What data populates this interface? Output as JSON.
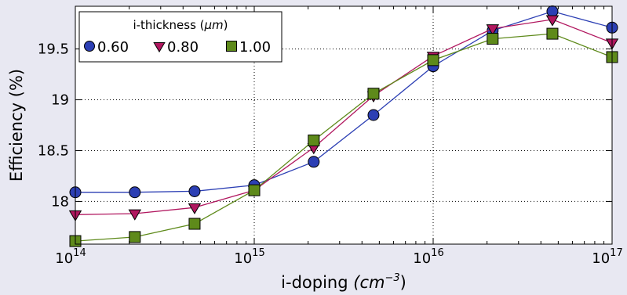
{
  "chart_data": {
    "type": "line",
    "xlabel": "i-doping",
    "xlabel_unit": "(cm",
    "xlabel_exp": "−3",
    "xlabel_close": ")",
    "ylabel": "Efficiency (%)",
    "xscale": "log",
    "xlim": [
      100000000000000.0,
      1e+17
    ],
    "ylim": [
      17.58,
      19.92
    ],
    "x_ticks": [
      {
        "value": 100000000000000.0,
        "base": "10",
        "exp": "14"
      },
      {
        "value": 1000000000000000.0,
        "base": "10",
        "exp": "15"
      },
      {
        "value": 1e+16,
        "base": "10",
        "exp": "16"
      },
      {
        "value": 1e+17,
        "base": "10",
        "exp": "17"
      }
    ],
    "y_ticks": [
      {
        "value": 18,
        "label": "18"
      },
      {
        "value": 18.5,
        "label": "18.5"
      },
      {
        "value": 19,
        "label": "19"
      },
      {
        "value": 19.5,
        "label": "19.5"
      }
    ],
    "grid": true,
    "legend": {
      "title_prefix": "i-thickness (",
      "title_unit": "μm",
      "title_suffix": ")",
      "placement": "top-left"
    },
    "series": [
      {
        "name": "0.60",
        "marker": "circle",
        "color": "#2c3fb4",
        "x": [
          100000000000000.0,
          215000000000000.0,
          464000000000000.0,
          1000000000000000.0,
          2150000000000000.0,
          4640000000000000.0,
          1e+16,
          2.15e+16,
          4.64e+16,
          1e+17
        ],
        "y": [
          18.09,
          18.09,
          18.1,
          18.16,
          18.39,
          18.85,
          19.33,
          19.68,
          19.87,
          19.71
        ]
      },
      {
        "name": "0.80",
        "marker": "triangle-down",
        "color": "#b1175f",
        "x": [
          100000000000000.0,
          215000000000000.0,
          464000000000000.0,
          1000000000000000.0,
          2150000000000000.0,
          4640000000000000.0,
          1e+16,
          2.15e+16,
          4.64e+16,
          1e+17
        ],
        "y": [
          17.87,
          17.88,
          17.94,
          18.11,
          18.53,
          19.04,
          19.43,
          19.7,
          19.79,
          19.56
        ]
      },
      {
        "name": "1.00",
        "marker": "square",
        "color": "#5e8a1a",
        "x": [
          100000000000000.0,
          215000000000000.0,
          464000000000000.0,
          1000000000000000.0,
          2150000000000000.0,
          4640000000000000.0,
          1e+16,
          2.15e+16,
          4.64e+16,
          1e+17
        ],
        "y": [
          17.61,
          17.65,
          17.78,
          18.11,
          18.6,
          19.06,
          19.39,
          19.6,
          19.65,
          19.42
        ]
      }
    ]
  }
}
